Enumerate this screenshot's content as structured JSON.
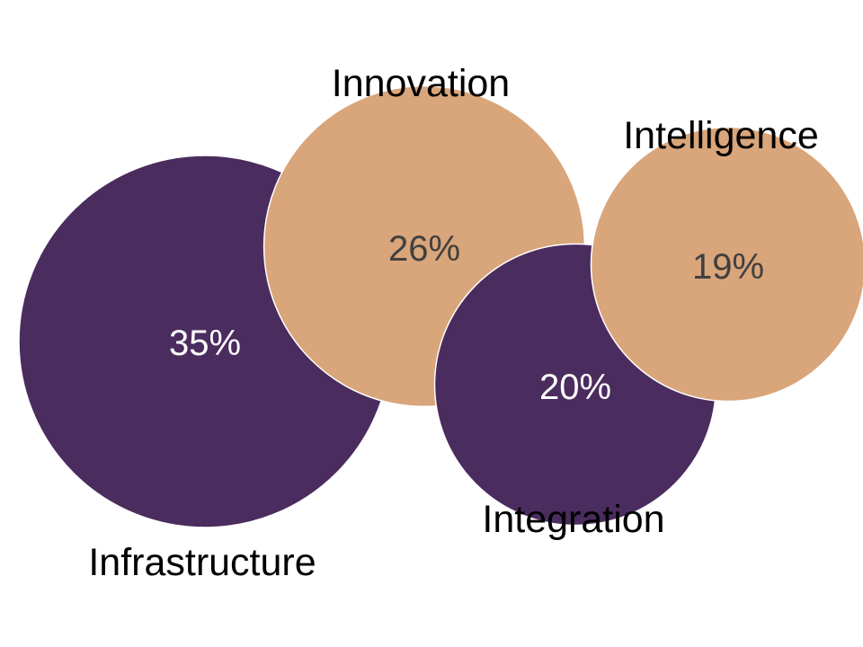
{
  "chart_data": {
    "type": "bubble",
    "categories": [
      "Infrastructure",
      "Innovation",
      "Integration",
      "Intelligence"
    ],
    "values": [
      35,
      26,
      20,
      19
    ],
    "value_labels": [
      "35%",
      "26%",
      "20%",
      "19%"
    ],
    "unit": "%",
    "title": "",
    "xlabel": "",
    "ylabel": "",
    "grid": false,
    "legend": "none",
    "colors": {
      "Infrastructure": "#4B2C5E",
      "Innovation": "#D9A57A",
      "Integration": "#4B2C5E",
      "Intelligence": "#D9A57A"
    },
    "value_label_colors": {
      "Infrastructure": "#FFFFFF",
      "Innovation": "#404040",
      "Integration": "#FFFFFF",
      "Intelligence": "#404040"
    }
  }
}
